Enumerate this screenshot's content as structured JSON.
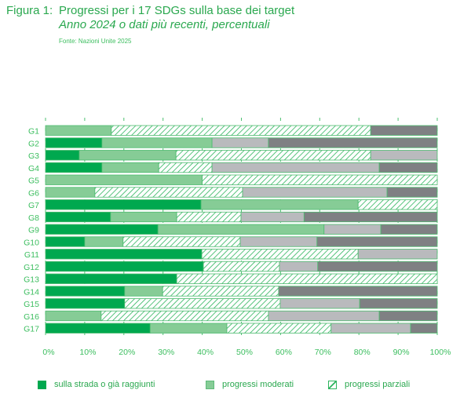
{
  "header": {
    "label": "Figura 1:",
    "title": "Progressi per i 17 SDGs sulla base dei target",
    "subtitle": "Anno 2024 o dati più recenti, percentuali",
    "source": "Fonte: Nazioni Unite 2025"
  },
  "colors": {
    "on_track": "#00a84f",
    "moderate": "#86cc96",
    "partial_stripe": "#2db45d",
    "light_grey": "#b9babd",
    "dark_grey": "#7f8083",
    "text": "#3cbe5f"
  },
  "legend": [
    {
      "key": "on_track",
      "label": "sulla strada o già raggiunti"
    },
    {
      "key": "moderate",
      "label": "progressi moderati"
    },
    {
      "key": "partial",
      "label": "progressi parziali"
    }
  ],
  "chart_data": {
    "type": "bar",
    "orientation": "horizontal",
    "stacked": true,
    "title": "Progressi per i 17 SDGs sulla base dei target",
    "subtitle": "Anno 2024 o dati più recenti, percentuali",
    "xlabel": "",
    "ylabel": "",
    "xlim": [
      0,
      100
    ],
    "grid": true,
    "legend_position": "bottom",
    "x_ticks": [
      "0%",
      "10%",
      "20%",
      "30%",
      "40%",
      "50%",
      "60%",
      "70%",
      "80%",
      "90%",
      "100%"
    ],
    "categories": [
      "G1",
      "G2",
      "G3",
      "G4",
      "G5",
      "G6",
      "G7",
      "G8",
      "G9",
      "G10",
      "G11",
      "G12",
      "G13",
      "G14",
      "G15",
      "G16",
      "G17"
    ],
    "series": [
      {
        "name": "sulla strada o già raggiunti",
        "key": "on_track",
        "values": [
          0,
          14.4,
          8.6,
          14.4,
          0,
          0,
          39.7,
          16.6,
          28.7,
          10.0,
          39.9,
          40.3,
          33.5,
          20.2,
          20.2,
          0,
          26.7
        ]
      },
      {
        "name": "progressi moderati",
        "key": "moderate",
        "values": [
          16.8,
          28.1,
          24.7,
          14.5,
          40.0,
          12.6,
          40.1,
          16.9,
          42.4,
          9.8,
          0,
          0,
          0,
          9.7,
          0,
          14.2,
          19.6
        ]
      },
      {
        "name": "progressi parziali",
        "key": "partial",
        "values": [
          66.2,
          0,
          49.7,
          13.6,
          60.0,
          37.7,
          20.2,
          16.4,
          0,
          29.9,
          39.9,
          19.4,
          66.5,
          29.6,
          39.7,
          42.7,
          26.6
        ]
      },
      {
        "name": "",
        "key": "light_grey",
        "values": [
          0,
          14.4,
          17.0,
          42.7,
          0,
          36.9,
          0,
          16.1,
          14.5,
          19.6,
          20.2,
          9.8,
          0,
          0,
          20.3,
          28.3,
          20.3
        ]
      },
      {
        "name": "",
        "key": "dark_grey",
        "values": [
          17.0,
          43.1,
          0,
          14.8,
          0,
          12.8,
          0,
          34.0,
          14.4,
          30.7,
          0,
          30.5,
          0,
          40.5,
          19.8,
          14.8,
          6.8
        ]
      }
    ]
  }
}
